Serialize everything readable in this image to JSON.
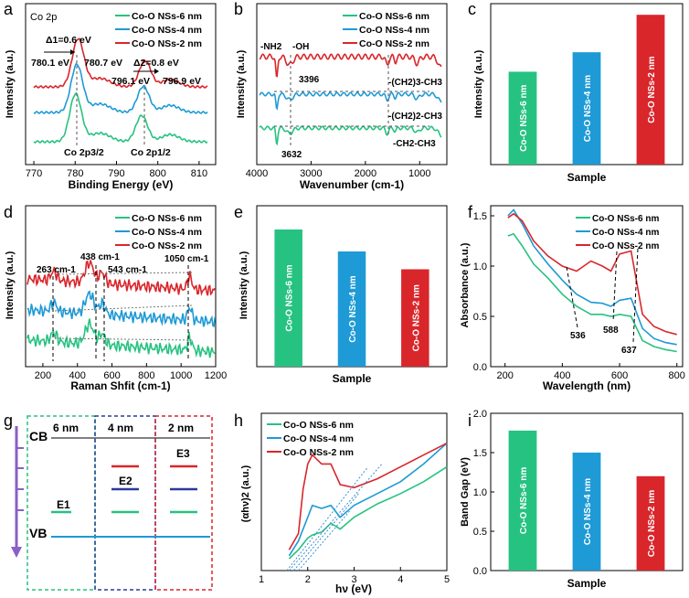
{
  "colors": {
    "green": "#26c281",
    "blue": "#1e9ad6",
    "red": "#d9262b",
    "navy": "#2a3a9a",
    "purple": "#8a5fc7"
  },
  "series_names": [
    "Co-O NSs-6 nm",
    "Co-O NSs-4 nm",
    "Co-O NSs-2 nm"
  ],
  "panel_letters": [
    "a",
    "b",
    "c",
    "d",
    "e",
    "f",
    "g",
    "h",
    "i"
  ],
  "chart_data": [
    {
      "panel": "a",
      "type": "line",
      "title": "Co 2p",
      "xlabel": "Binding Energy (eV)",
      "ylabel": "Intensity (a.u.)",
      "xlim": [
        768,
        814
      ],
      "xticks": [
        770,
        780,
        790,
        800,
        810
      ],
      "series": [
        {
          "name": "Co-O NSs-6 nm",
          "peaks": [
            [
              780.1,
              1.0
            ],
            [
              796.1,
              0.55
            ]
          ]
        },
        {
          "name": "Co-O NSs-4 nm",
          "peaks": [
            [
              780.4,
              1.0
            ],
            [
              796.5,
              0.55
            ]
          ]
        },
        {
          "name": "Co-O NSs-2 nm",
          "peaks": [
            [
              780.7,
              1.0
            ],
            [
              796.9,
              0.55
            ]
          ]
        }
      ],
      "annotations": {
        "d1": "Δ1=0.6 eV",
        "d2": "Δ2=0.8 eV",
        "p1": "780.1 eV",
        "p2": "780.7 eV",
        "p3": "796.1 eV",
        "p4": "796.9 eV",
        "co2p32": "Co 2p3/2",
        "co2p12": "Co 2p1/2"
      }
    },
    {
      "panel": "b",
      "type": "line",
      "xlabel": "Wavenumber (cm-1)",
      "ylabel": "Intensity (a.u.)",
      "xlim": [
        4000,
        500
      ],
      "xticks": [
        4000,
        3000,
        2000,
        1000
      ],
      "series": [
        {
          "name": "Co-O NSs-6 nm"
        },
        {
          "name": "Co-O NSs-4 nm"
        },
        {
          "name": "Co-O NSs-2 nm"
        }
      ],
      "annotations": {
        "nh2": "-NH2",
        "oh": "-OH",
        "w3396": "3396",
        "w3632": "3632",
        "ch2_3": "-(CH2)3-CH3",
        "ch2_2": "-(CH2)2-CH3",
        "ch2ch3": "-CH2-CH3"
      }
    },
    {
      "panel": "c",
      "type": "bar",
      "xlabel": "Sample",
      "ylabel": "Intensity (a.u.)",
      "categories": [
        "Co-O NSs-6 nm",
        "Co-O NSs-4 nm",
        "Co-O NSs-2 nm"
      ],
      "values": [
        0.62,
        0.75,
        1.0
      ],
      "ylim": [
        0,
        1.05
      ]
    },
    {
      "panel": "d",
      "type": "line",
      "xlabel": "Raman Shfit (cm-1)",
      "ylabel": "Intensity (a.u.)",
      "xlim": [
        100,
        1200
      ],
      "xticks": [
        200,
        400,
        600,
        800,
        1000,
        1200
      ],
      "series": [
        {
          "name": "Co-O NSs-6 nm"
        },
        {
          "name": "Co-O NSs-4 nm"
        },
        {
          "name": "Co-O NSs-2 nm"
        }
      ],
      "peaks": [
        263,
        438,
        543,
        1050
      ],
      "annotations": {
        "r263": "263 cm-1",
        "r438": "438 cm-1",
        "r543": "543 cm-1",
        "r1050": "1050 cm-1"
      }
    },
    {
      "panel": "e",
      "type": "bar",
      "xlabel": "Sample",
      "ylabel": "Intensity (a.u.)",
      "categories": [
        "Co-O NSs-6 nm",
        "Co-O NSs-4 nm",
        "Co-O NSs-2 nm"
      ],
      "values": [
        1.0,
        0.84,
        0.71
      ],
      "ylim": [
        0,
        1.1
      ]
    },
    {
      "panel": "f",
      "type": "line",
      "xlabel": "Wavelength (nm)",
      "ylabel": "Absorbance (a.u.)",
      "xlim": [
        150,
        820
      ],
      "ylim": [
        0,
        1.6
      ],
      "xticks": [
        200,
        400,
        600,
        800
      ],
      "yticks": [
        0,
        0.5,
        1.0,
        1.5
      ],
      "series": [
        {
          "name": "Co-O NSs-6 nm",
          "x": [
            210,
            230,
            260,
            300,
            350,
            400,
            450,
            500,
            540,
            570,
            600,
            640,
            680,
            720,
            760,
            800
          ],
          "y": [
            1.3,
            1.32,
            1.2,
            1.02,
            0.88,
            0.72,
            0.6,
            0.52,
            0.52,
            0.5,
            0.52,
            0.5,
            0.26,
            0.2,
            0.17,
            0.15
          ]
        },
        {
          "name": "Co-O NSs-4 nm",
          "x": [
            210,
            230,
            260,
            300,
            350,
            400,
            450,
            500,
            540,
            570,
            600,
            640,
            680,
            720,
            760,
            800
          ],
          "y": [
            1.5,
            1.56,
            1.42,
            1.2,
            1.02,
            0.86,
            0.72,
            0.64,
            0.63,
            0.6,
            0.66,
            0.68,
            0.38,
            0.28,
            0.24,
            0.22
          ]
        },
        {
          "name": "Co-O NSs-2 nm",
          "x": [
            210,
            230,
            260,
            300,
            350,
            400,
            450,
            500,
            540,
            570,
            600,
            640,
            680,
            720,
            760,
            800
          ],
          "y": [
            1.48,
            1.52,
            1.45,
            1.25,
            1.1,
            1.0,
            0.95,
            1.05,
            1.0,
            0.95,
            1.12,
            1.15,
            0.52,
            0.4,
            0.35,
            0.32
          ]
        }
      ],
      "annotations": {
        "w536": "536",
        "w588": "588",
        "w637": "637"
      }
    },
    {
      "panel": "g",
      "type": "diagram",
      "columns": [
        "6 nm",
        "4 nm",
        "2 nm"
      ],
      "labels": {
        "cb": "CB",
        "vb": "VB",
        "e1": "E1",
        "e2": "E2",
        "e3": "E3"
      }
    },
    {
      "panel": "h",
      "type": "line",
      "xlabel": "hν (eV)",
      "ylabel": "(αhν)2 (a.u.)",
      "xlim": [
        1,
        5
      ],
      "xticks": [
        1,
        2,
        3,
        4,
        5
      ],
      "series": [
        {
          "name": "Co-O NSs-6 nm",
          "x": [
            1.6,
            1.8,
            2.0,
            2.1,
            2.3,
            2.5,
            2.7,
            3.0,
            3.5,
            4.0,
            4.5,
            5.0
          ],
          "y": [
            0.08,
            0.14,
            0.22,
            0.24,
            0.26,
            0.32,
            0.28,
            0.36,
            0.45,
            0.52,
            0.6,
            0.7
          ]
        },
        {
          "name": "Co-O NSs-4 nm",
          "x": [
            1.6,
            1.8,
            2.0,
            2.1,
            2.3,
            2.5,
            2.7,
            3.0,
            3.5,
            4.0,
            4.5,
            5.0
          ],
          "y": [
            0.1,
            0.2,
            0.36,
            0.44,
            0.42,
            0.44,
            0.36,
            0.44,
            0.52,
            0.6,
            0.72,
            0.86
          ]
        },
        {
          "name": "Co-O NSs-2 nm",
          "x": [
            1.6,
            1.8,
            1.9,
            2.0,
            2.1,
            2.3,
            2.5,
            2.7,
            3.0,
            3.5,
            4.0,
            4.5,
            5.0
          ],
          "y": [
            0.14,
            0.25,
            0.55,
            0.72,
            0.78,
            0.72,
            0.72,
            0.58,
            0.56,
            0.62,
            0.7,
            0.78,
            0.86
          ]
        }
      ]
    },
    {
      "panel": "i",
      "type": "bar",
      "xlabel": "Sample",
      "ylabel": "Band Gap (eV)",
      "categories": [
        "Co-O NSs-6 nm",
        "Co-O NSs-4 nm",
        "Co-O NSs-2 nm"
      ],
      "values": [
        1.78,
        1.5,
        1.2
      ],
      "ylim": [
        0,
        2.0
      ],
      "yticks": [
        0,
        0.5,
        1.0,
        1.5,
        2.0
      ],
      "ytick_labels": [
        "0.0",
        "0.5",
        "1.0",
        "1.5",
        "2.0"
      ]
    }
  ]
}
